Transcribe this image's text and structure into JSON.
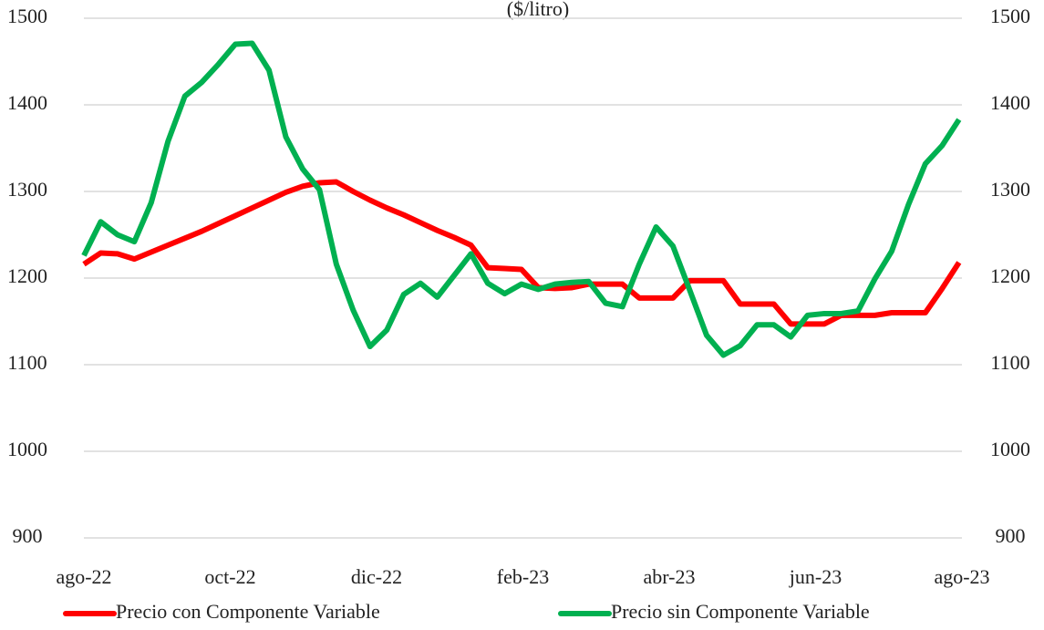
{
  "chart_data": {
    "type": "line",
    "title": "($/litro)",
    "x": [
      0,
      0.23,
      0.46,
      0.69,
      0.92,
      1.15,
      1.38,
      1.61,
      1.84,
      2.07,
      2.3,
      2.53,
      2.76,
      2.99,
      3.22,
      3.45,
      3.68,
      3.91,
      4.14,
      4.37,
      4.6,
      4.83,
      5.06,
      5.29,
      5.52,
      5.75,
      5.98,
      6.21,
      6.44,
      6.67,
      6.9,
      7.13,
      7.36,
      7.59,
      7.82,
      8.05,
      8.28,
      8.51,
      8.74,
      8.97,
      9.2,
      9.43,
      9.66,
      9.89,
      10.12,
      10.35,
      10.58,
      10.81,
      11.04,
      11.27,
      11.5,
      11.73,
      11.96
    ],
    "xlim": [
      0,
      12
    ],
    "xticks": [
      {
        "value": 0,
        "label": "ago-22"
      },
      {
        "value": 2,
        "label": "oct-22"
      },
      {
        "value": 4,
        "label": "dic-22"
      },
      {
        "value": 6,
        "label": "feb-23"
      },
      {
        "value": 8,
        "label": "abr-23"
      },
      {
        "value": 10,
        "label": "jun-23"
      },
      {
        "value": 12,
        "label": "ago-23"
      }
    ],
    "ylim": [
      900,
      1500
    ],
    "yticks": [
      900,
      1000,
      1100,
      1200,
      1300,
      1400,
      1500
    ],
    "y2lim": [
      900,
      1500
    ],
    "y2ticks": [
      900,
      1000,
      1100,
      1200,
      1300,
      1400,
      1500
    ],
    "grid": true,
    "legend": "bottom",
    "series": [
      {
        "name": "Precio con Componente Variable",
        "color": "#ff0000",
        "values": [
          1216,
          1229,
          1228,
          1222,
          1230,
          1238,
          1246,
          1254,
          1263,
          1272,
          1281,
          1290,
          1299,
          1306,
          1310,
          1311,
          1300,
          1290,
          1281,
          1273,
          1264,
          1255,
          1247,
          1238,
          1212,
          1211,
          1210,
          1189,
          1188,
          1189,
          1193,
          1193,
          1193,
          1177,
          1177,
          1177,
          1197,
          1197,
          1197,
          1170,
          1170,
          1170,
          1147,
          1147,
          1147,
          1157,
          1157,
          1157,
          1160,
          1160,
          1160,
          1188,
          1218
        ]
      },
      {
        "name": "Precio sin Componente Variable",
        "color": "#00b050",
        "axis": "y2",
        "values": [
          1226,
          1265,
          1250,
          1242,
          1287,
          1358,
          1410,
          1426,
          1447,
          1470,
          1471,
          1440,
          1363,
          1326,
          1302,
          1216,
          1163,
          1121,
          1140,
          1181,
          1194,
          1178,
          1203,
          1228,
          1194,
          1182,
          1193,
          1187,
          1193,
          1195,
          1196,
          1171,
          1167,
          1216,
          1259,
          1237,
          1186,
          1134,
          1111,
          1122,
          1146,
          1146,
          1132,
          1157,
          1159,
          1159,
          1162,
          1199,
          1231,
          1285,
          1332,
          1353,
          1383
        ]
      }
    ]
  }
}
